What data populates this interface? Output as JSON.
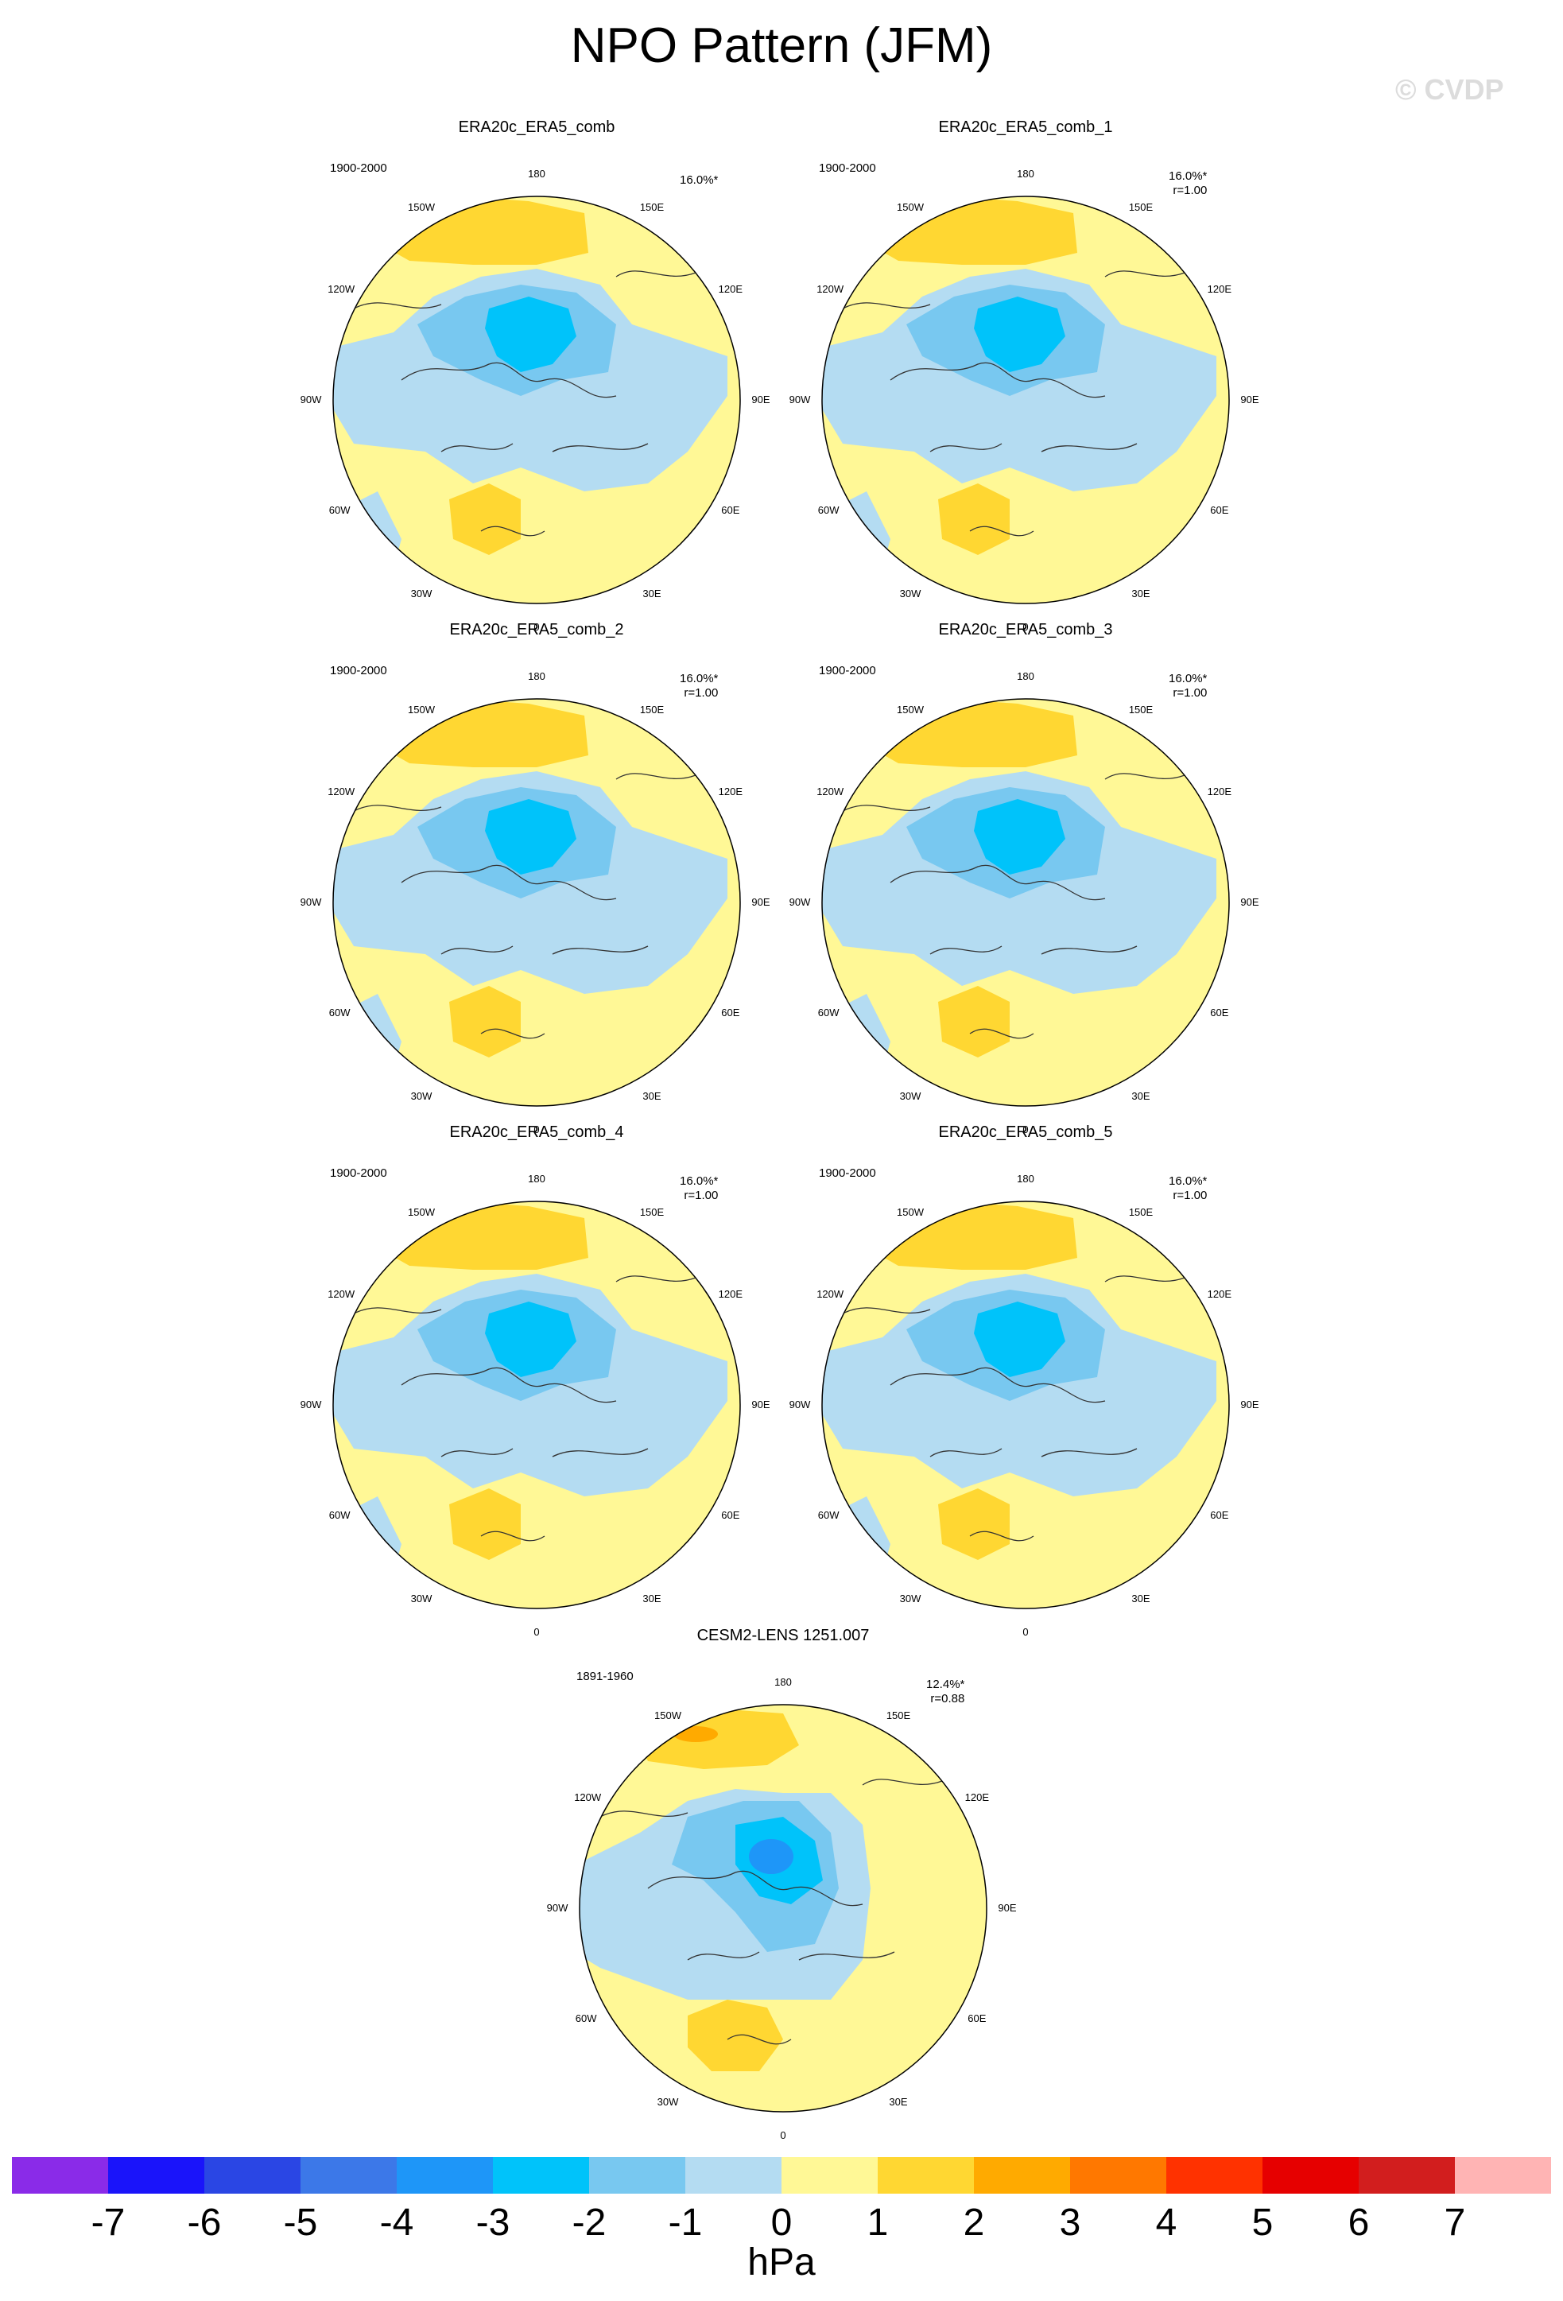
{
  "title": "NPO Pattern (JFM)",
  "watermark": "© CVDP",
  "chart_data": [
    {
      "type": "heatmap",
      "projection": "north-polar-stereographic",
      "title": "ERA20c_ERA5_comb",
      "period": "1900-2000",
      "pct_variance": "16.0%*",
      "pattern_corr": ""
    },
    {
      "type": "heatmap",
      "projection": "north-polar-stereographic",
      "title": "ERA20c_ERA5_comb_1",
      "period": "1900-2000",
      "pct_variance": "16.0%*",
      "pattern_corr": "r=1.00"
    },
    {
      "type": "heatmap",
      "projection": "north-polar-stereographic",
      "title": "ERA20c_ERA5_comb_2",
      "period": "1900-2000",
      "pct_variance": "16.0%*",
      "pattern_corr": "r=1.00"
    },
    {
      "type": "heatmap",
      "projection": "north-polar-stereographic",
      "title": "ERA20c_ERA5_comb_3",
      "period": "1900-2000",
      "pct_variance": "16.0%*",
      "pattern_corr": "r=1.00"
    },
    {
      "type": "heatmap",
      "projection": "north-polar-stereographic",
      "title": "ERA20c_ERA5_comb_4",
      "period": "1900-2000",
      "pct_variance": "16.0%*",
      "pattern_corr": "r=1.00"
    },
    {
      "type": "heatmap",
      "projection": "north-polar-stereographic",
      "title": "ERA20c_ERA5_comb_5",
      "period": "1900-2000",
      "pct_variance": "16.0%*",
      "pattern_corr": "r=1.00"
    },
    {
      "type": "heatmap",
      "projection": "north-polar-stereographic",
      "title": "CESM2-LENS 1251.007",
      "period": "1891-1960",
      "pct_variance": "12.4%*",
      "pattern_corr": "r=0.88"
    }
  ],
  "longitude_labels": [
    "180",
    "150E",
    "120E",
    "90E",
    "60E",
    "30E",
    "0",
    "30W",
    "60W",
    "90W",
    "120W",
    "150W"
  ],
  "colorbar": {
    "unit": "hPa",
    "ticks": [
      "-7",
      "-6",
      "-5",
      "-4",
      "-3",
      "-2",
      "-1",
      "0",
      "1",
      "2",
      "3",
      "4",
      "5",
      "6",
      "7"
    ],
    "colors": [
      "#8a2be8",
      "#1a14fa",
      "#2a46e4",
      "#3c78e8",
      "#1e96f8",
      "#00c3fa",
      "#78c8f0",
      "#b4dcf2",
      "#fff896",
      "#ffd732",
      "#ffaa00",
      "#ff7800",
      "#ff3200",
      "#e60000",
      "#d21e1e",
      "#ffb4b4"
    ]
  }
}
